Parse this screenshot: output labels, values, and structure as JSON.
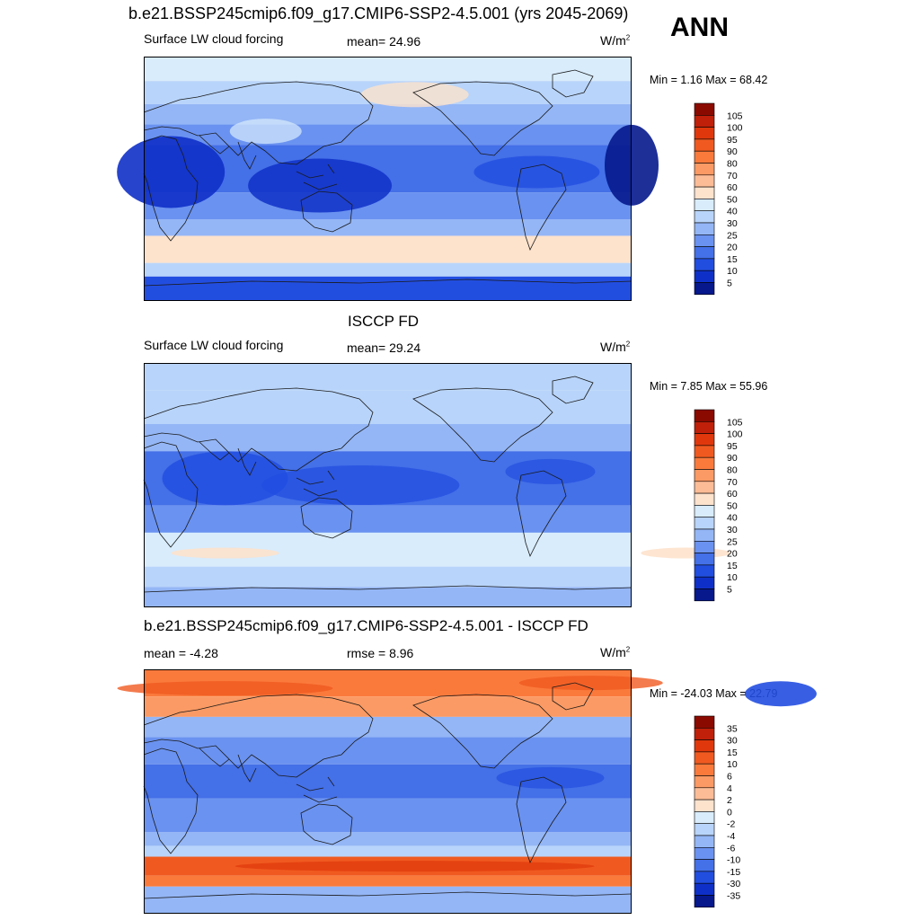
{
  "header": {
    "title": "b.e21.BSSP245cmip6.f09_g17.CMIP6-SSP2-4.5.001 (yrs 2045-2069)",
    "season": "ANN"
  },
  "panels": [
    {
      "id": "model",
      "title": "",
      "field_label": "Surface LW cloud forcing",
      "stat_text": "mean=  24.96",
      "units": "W/m",
      "units_sup": "2",
      "minmax": "Min =   1.16 Max =  68.42",
      "colorbar": {
        "colors": [
          "#8b0a00",
          "#c0200a",
          "#e0380c",
          "#f05a20",
          "#fa7a3c",
          "#fb9a64",
          "#fcbc96",
          "#fde2cc",
          "#d8ecfc",
          "#b8d4fa",
          "#94b6f6",
          "#6a92f0",
          "#4470e8",
          "#224ee0",
          "#0f30c8",
          "#06188c"
        ],
        "labels": [
          "105",
          "100",
          "95",
          "90",
          "80",
          "70",
          "60",
          "50",
          "40",
          "30",
          "25",
          "20",
          "15",
          "10",
          "5"
        ]
      }
    },
    {
      "id": "obs",
      "title": "ISCCP FD",
      "field_label": "Surface LW cloud forcing",
      "stat_text": "mean=  29.24",
      "units": "W/m",
      "units_sup": "2",
      "minmax": "Min =   7.85 Max =  55.96",
      "colorbar": {
        "colors": [
          "#8b0a00",
          "#c0200a",
          "#e0380c",
          "#f05a20",
          "#fa7a3c",
          "#fb9a64",
          "#fcbc96",
          "#fde2cc",
          "#d8ecfc",
          "#b8d4fa",
          "#94b6f6",
          "#6a92f0",
          "#4470e8",
          "#224ee0",
          "#0f30c8",
          "#06188c"
        ],
        "labels": [
          "105",
          "100",
          "95",
          "90",
          "80",
          "70",
          "60",
          "50",
          "40",
          "30",
          "25",
          "20",
          "15",
          "10",
          "5"
        ]
      }
    },
    {
      "id": "diff",
      "title": "b.e21.BSSP245cmip6.f09_g17.CMIP6-SSP2-4.5.001 - ISCCP FD",
      "field_label": "mean =  -4.28",
      "stat_text": "rmse =   8.96",
      "units": "W/m",
      "units_sup": "2",
      "minmax": "Min = -24.03 Max =  22.79",
      "colorbar": {
        "colors": [
          "#8b0a00",
          "#c0200a",
          "#e0380c",
          "#f05a20",
          "#fa7a3c",
          "#fb9a64",
          "#fcbc96",
          "#fde2cc",
          "#d8ecfc",
          "#b8d4fa",
          "#94b6f6",
          "#6a92f0",
          "#4470e8",
          "#224ee0",
          "#0f30c8",
          "#06188c"
        ],
        "labels": [
          "35",
          "30",
          "15",
          "10",
          "6",
          "4",
          "2",
          "0",
          "-2",
          "-4",
          "-6",
          "-10",
          "-15",
          "-30",
          "-35"
        ]
      }
    }
  ],
  "chart_data": {
    "type": "heatmap",
    "description_fields": {
      "variable": "Surface LW cloud forcing",
      "units": "W/m2"
    },
    "panels": [
      {
        "name": "model",
        "mean": 24.96,
        "min": 1.16,
        "max": 68.42,
        "levels": [
          5,
          10,
          15,
          20,
          25,
          30,
          40,
          50,
          60,
          70,
          80,
          90,
          95,
          100,
          105
        ]
      },
      {
        "name": "obs",
        "mean": 29.24,
        "min": 7.85,
        "max": 55.96,
        "levels": [
          5,
          10,
          15,
          20,
          25,
          30,
          40,
          50,
          60,
          70,
          80,
          90,
          95,
          100,
          105
        ]
      },
      {
        "name": "diff",
        "mean": -4.28,
        "rmse": 8.96,
        "min": -24.03,
        "max": 22.79,
        "levels": [
          -35,
          -30,
          -15,
          -10,
          -6,
          -4,
          -2,
          0,
          2,
          4,
          6,
          10,
          15,
          30,
          35
        ]
      }
    ]
  },
  "palette": {
    "frame": "#000000",
    "coast": "#1a1a1a"
  }
}
